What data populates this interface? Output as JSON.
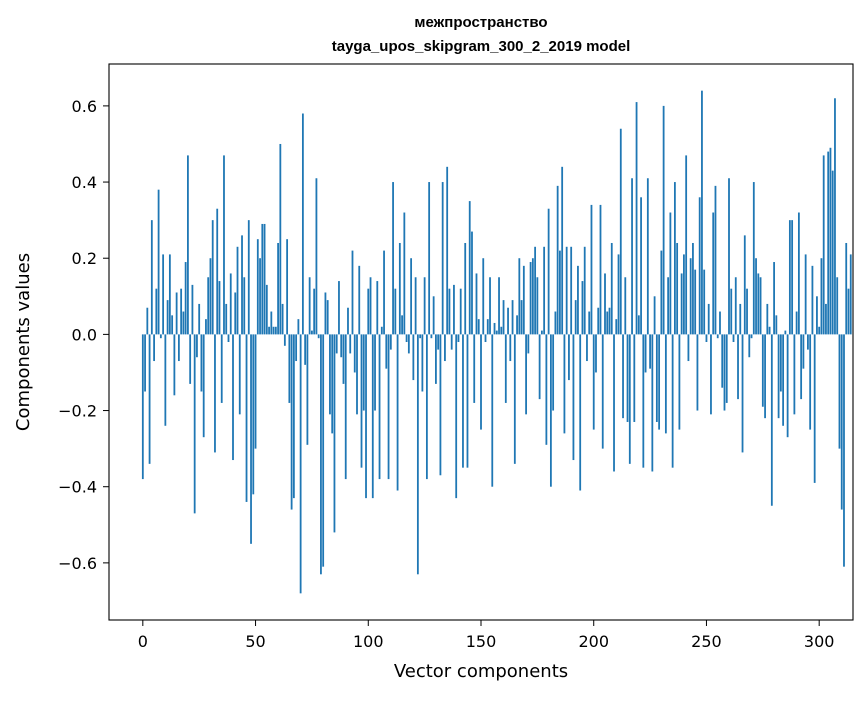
{
  "chart_data": {
    "type": "bar",
    "title_line1": "межпространство",
    "title_line2": "tayga_upos_skipgram_300_2_2019 model",
    "xlabel": "Vector components",
    "ylabel": "Components values",
    "xlim": [
      -15,
      315
    ],
    "ylim": [
      -0.75,
      0.71
    ],
    "xticks": [
      0,
      50,
      100,
      150,
      200,
      250,
      300
    ],
    "yticks": [
      -0.6,
      -0.4,
      -0.2,
      0.0,
      0.2,
      0.4,
      0.6
    ],
    "xtick_labels": [
      "0",
      "50",
      "100",
      "150",
      "200",
      "250",
      "300"
    ],
    "ytick_labels": [
      "−0.6",
      "−0.4",
      "−0.2",
      "0.0",
      "0.2",
      "0.4",
      "0.6"
    ],
    "grid": false,
    "legend": "none",
    "bar_color": "#1f77b4",
    "values": [
      -0.38,
      -0.15,
      0.07,
      -0.34,
      0.3,
      -0.07,
      0.12,
      0.38,
      -0.01,
      0.21,
      -0.24,
      0.09,
      0.21,
      0.05,
      -0.16,
      0.11,
      -0.07,
      0.12,
      0.06,
      0.19,
      0.47,
      -0.13,
      0.13,
      -0.47,
      -0.06,
      0.08,
      -0.15,
      -0.27,
      0.04,
      0.15,
      0.2,
      0.3,
      -0.31,
      0.33,
      0.14,
      -0.18,
      0.47,
      0.08,
      -0.02,
      0.16,
      -0.33,
      0.11,
      0.23,
      -0.21,
      0.26,
      0.15,
      -0.44,
      0.3,
      -0.55,
      -0.42,
      -0.3,
      0.25,
      0.2,
      0.29,
      0.29,
      0.13,
      0.02,
      0.06,
      0.02,
      0.02,
      0.24,
      0.5,
      0.08,
      -0.03,
      0.25,
      -0.18,
      -0.46,
      -0.43,
      -0.07,
      0.04,
      -0.68,
      0.58,
      -0.08,
      -0.29,
      0.15,
      0.01,
      0.12,
      0.41,
      -0.01,
      -0.63,
      -0.61,
      0.11,
      0.09,
      -0.21,
      -0.26,
      -0.52,
      -0.05,
      0.14,
      -0.06,
      -0.13,
      -0.38,
      0.07,
      -0.05,
      0.22,
      -0.1,
      -0.21,
      0.18,
      -0.35,
      -0.2,
      -0.43,
      0.12,
      0.15,
      -0.43,
      -0.2,
      0.14,
      -0.38,
      0.02,
      0.22,
      -0.09,
      -0.38,
      -0.04,
      0.4,
      0.12,
      -0.41,
      0.24,
      0.05,
      0.32,
      -0.02,
      -0.05,
      0.2,
      -0.12,
      0.15,
      -0.63,
      -0.01,
      -0.15,
      0.15,
      -0.38,
      0.4,
      -0.01,
      0.1,
      -0.13,
      -0.04,
      -0.37,
      0.4,
      -0.07,
      0.44,
      0.12,
      -0.04,
      0.13,
      -0.43,
      -0.02,
      0.12,
      -0.35,
      0.24,
      -0.35,
      0.35,
      0.27,
      -0.18,
      0.16,
      0.04,
      -0.25,
      0.2,
      -0.02,
      0.04,
      0.15,
      -0.4,
      0.03,
      0.01,
      0.15,
      0.02,
      0.09,
      -0.18,
      0.07,
      -0.07,
      0.09,
      -0.34,
      0.05,
      0.2,
      0.09,
      0.18,
      -0.21,
      -0.05,
      0.19,
      0.2,
      0.23,
      0.15,
      -0.17,
      0.01,
      0.23,
      -0.29,
      0.33,
      -0.4,
      -0.2,
      0.06,
      0.39,
      0.22,
      0.44,
      -0.26,
      0.23,
      -0.12,
      0.23,
      -0.33,
      0.09,
      0.18,
      -0.41,
      0.14,
      0.23,
      -0.07,
      0.06,
      0.34,
      -0.25,
      -0.1,
      0.07,
      0.34,
      -0.3,
      0.16,
      0.06,
      0.07,
      0.24,
      -0.36,
      0.04,
      0.21,
      0.54,
      -0.22,
      0.15,
      -0.23,
      -0.34,
      0.41,
      -0.23,
      0.61,
      0.05,
      0.36,
      -0.35,
      -0.1,
      0.41,
      -0.09,
      -0.36,
      0.1,
      -0.23,
      -0.25,
      0.22,
      0.6,
      -0.26,
      0.15,
      0.32,
      -0.35,
      0.4,
      0.24,
      -0.25,
      0.16,
      0.21,
      0.47,
      -0.07,
      0.2,
      0.24,
      0.17,
      -0.2,
      0.36,
      0.64,
      0.17,
      -0.02,
      0.08,
      -0.21,
      0.32,
      0.39,
      -0.01,
      0.06,
      -0.14,
      -0.2,
      -0.18,
      0.41,
      0.12,
      -0.02,
      0.15,
      -0.17,
      0.08,
      -0.31,
      0.26,
      0.12,
      -0.06,
      -0.01,
      0.4,
      0.2,
      0.16,
      0.15,
      -0.19,
      -0.22,
      0.08,
      0.02,
      -0.45,
      0.19,
      0.05,
      -0.22,
      -0.15,
      -0.24,
      0.01,
      -0.27,
      0.3,
      0.3,
      -0.21,
      0.06,
      0.32,
      -0.17,
      -0.09,
      0.21,
      -0.04,
      -0.25,
      0.18,
      -0.39,
      0.1,
      0.02,
      0.2,
      0.47,
      0.08,
      0.48,
      0.49,
      0.43,
      0.62,
      0.15,
      -0.3,
      -0.46,
      -0.61,
      0.24,
      0.12,
      0.21
    ]
  }
}
